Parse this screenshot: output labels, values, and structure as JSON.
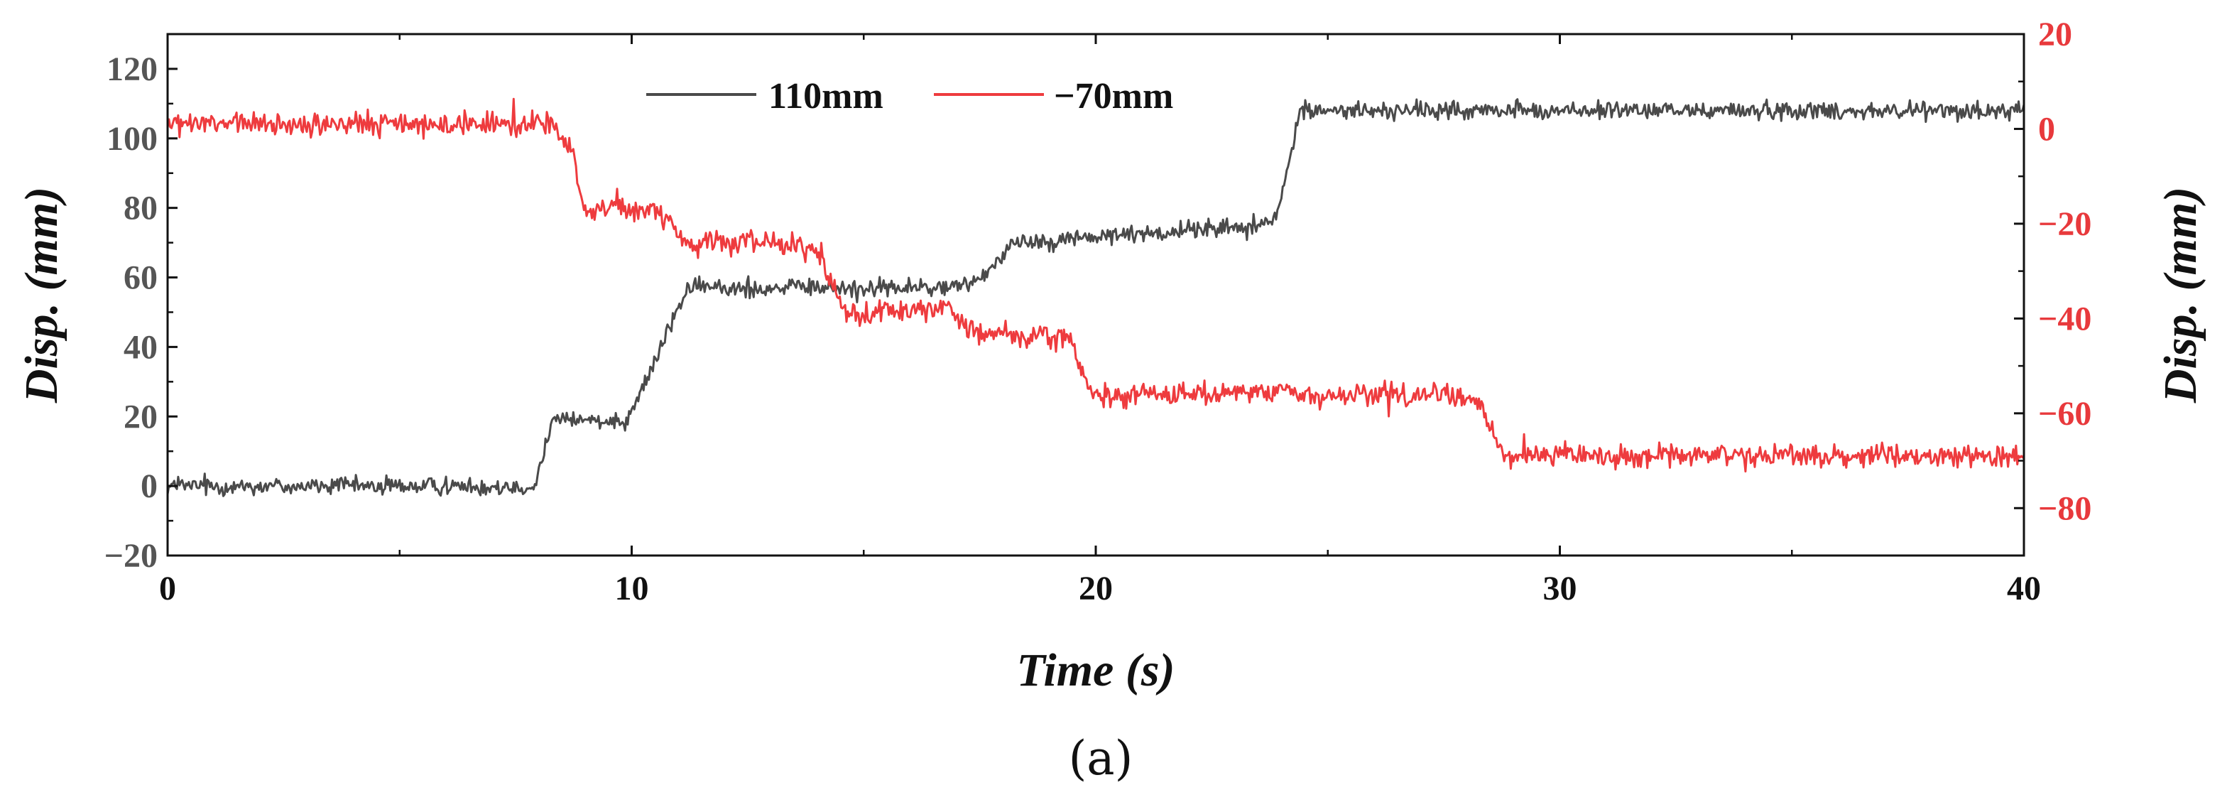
{
  "chart_data": {
    "type": "line",
    "caption": "(a)",
    "xlabel": "Time (s)",
    "xlim": [
      0,
      40
    ],
    "xticks": [
      "0",
      "10",
      "20",
      "30",
      "40"
    ],
    "ylabel_left": "Disp. (mm)",
    "ylim_left": [
      -20,
      130
    ],
    "yticks_left": [
      "−20",
      "0",
      "20",
      "40",
      "60",
      "80",
      "100",
      "120"
    ],
    "ylabel_right": "Disp. (mm)",
    "ylim_right": [
      -90,
      20
    ],
    "yticks_right": [
      "−80",
      "−60",
      "−40",
      "−20",
      "0",
      "20"
    ],
    "legend": {
      "position": "top-center"
    },
    "series": [
      {
        "name": "110mm",
        "axis": "left",
        "color": "#4a4a4a",
        "noise": 1.6,
        "x": [
          0,
          7.9,
          8.3,
          9.9,
          10.3,
          11.2,
          17.0,
          17.5,
          17.9,
          18.2,
          23.5,
          23.9,
          24.4,
          40
        ],
        "y": [
          0,
          0,
          19,
          19,
          30,
          57,
          57,
          60,
          65,
          70,
          75,
          77,
          108,
          108
        ]
      },
      {
        "name": "−70mm",
        "axis": "right",
        "color": "#ee3b3e",
        "noise": 1.5,
        "x": [
          0,
          8.3,
          8.7,
          9.0,
          10.5,
          11.2,
          13.6,
          14.1,
          14.6,
          16.8,
          17.5,
          19.4,
          19.9,
          27.6,
          28.3,
          28.8,
          40
        ],
        "y": [
          1,
          1,
          -5,
          -17,
          -17,
          -24,
          -24,
          -27,
          -39,
          -38,
          -43,
          -44,
          -56,
          -56,
          -58,
          -69,
          -69
        ]
      }
    ]
  }
}
